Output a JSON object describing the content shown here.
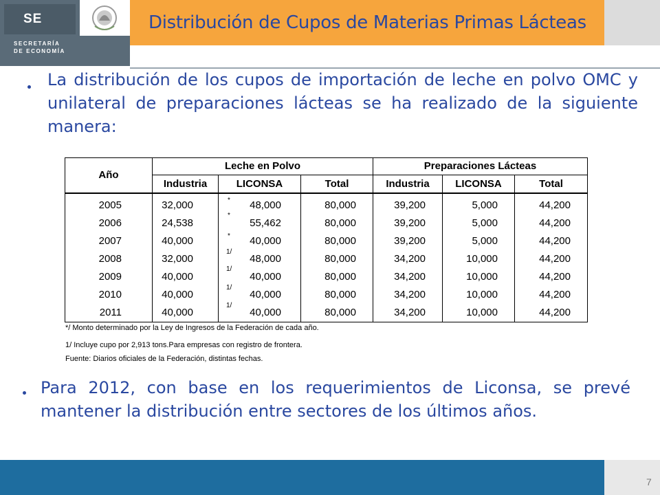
{
  "header": {
    "logo_short": "SE",
    "logo_line1": "SECRETARÍA",
    "logo_line2": "DE ECONOMÍA",
    "title": "Distribución de Cupos de Materias Primas Lácteas",
    "colors": {
      "title_bar": "#f6a53d",
      "title_text": "#2a48a0",
      "logo_bg": "#5a6b78",
      "footer": "#1e6d9f"
    }
  },
  "bullets": [
    "La distribución de los cupos de importación de leche en polvo OMC y unilateral de preparaciones lácteas se ha realizado de la siguiente manera:",
    "Para 2012, con base en los requerimientos de Liconsa, se prevé mantener la distribución entre sectores de los últimos años."
  ],
  "table": {
    "year_header": "Año",
    "group1": "Leche en Polvo",
    "group2": "Preparaciones Lácteas",
    "subheaders": [
      "Industria",
      "LICONSA",
      "Total",
      "Industria",
      "LICONSA",
      "Total"
    ],
    "rows": [
      {
        "year": "2005",
        "mark": "*",
        "values": [
          "32,000",
          "48,000",
          "80,000",
          "39,200",
          "5,000",
          "44,200"
        ]
      },
      {
        "year": "2006",
        "mark": "*",
        "values": [
          "24,538",
          "55,462",
          "80,000",
          "39,200",
          "5,000",
          "44,200"
        ]
      },
      {
        "year": "2007",
        "mark": "*",
        "values": [
          "40,000",
          "40,000",
          "80,000",
          "39,200",
          "5,000",
          "44,200"
        ]
      },
      {
        "year": "2008",
        "mark": "1/",
        "values": [
          "32,000",
          "48,000",
          "80,000",
          "34,200",
          "10,000",
          "44,200"
        ]
      },
      {
        "year": "2009",
        "mark": "1/",
        "values": [
          "40,000",
          "40,000",
          "80,000",
          "34,200",
          "10,000",
          "44,200"
        ]
      },
      {
        "year": "2010",
        "mark": "1/",
        "values": [
          "40,000",
          "40,000",
          "80,000",
          "34,200",
          "10,000",
          "44,200"
        ]
      },
      {
        "year": "2011",
        "mark": "1/",
        "values": [
          "40,000",
          "40,000",
          "80,000",
          "34,200",
          "10,000",
          "44,200"
        ]
      }
    ],
    "notes": [
      "*/ Monto determinado por la Ley de Ingresos de la Federación de cada año.",
      "1/ Incluye cupo por 2,913 tons.Para empresas con registro de frontera.",
      "Fuente: Diarios oficiales de la Federación, distintas fechas."
    ]
  },
  "footer": {
    "page": "7"
  }
}
